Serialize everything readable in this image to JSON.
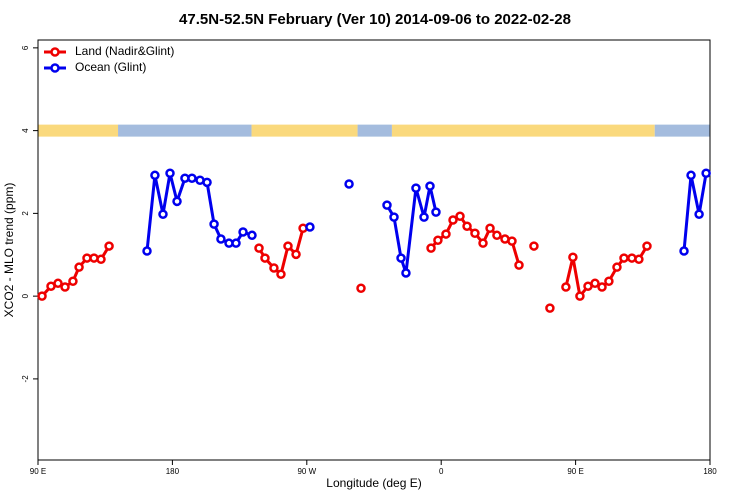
{
  "chart_data": {
    "type": "line",
    "title": "47.5N-52.5N February (Ver 10)   2014-09-06 to 2022-02-28",
    "x_label": "Longitude (deg E)",
    "y_label": "XCO2 - MLO trend (ppm)",
    "xlim": [
      90,
      540
    ],
    "xticks": [
      {
        "value": 90,
        "label": "90 E"
      },
      {
        "value": 180,
        "label": "180"
      },
      {
        "value": 270,
        "label": "90 W"
      },
      {
        "value": 360,
        "label": "0"
      },
      {
        "value": 450,
        "label": "90 E"
      },
      {
        "value": 540,
        "label": "180"
      }
    ],
    "ylim": [
      -3.96,
      6.19
    ],
    "yticks": [
      -2,
      0,
      2,
      4,
      6
    ],
    "legend": "top-left",
    "band": {
      "y": 4,
      "segments": [
        {
          "start": 90,
          "end": 143.6,
          "color": "#fad97d"
        },
        {
          "start": 143.6,
          "end": 233,
          "color": "#a4bcde"
        },
        {
          "start": 233,
          "end": 304,
          "color": "#fad97d"
        },
        {
          "start": 304,
          "end": 327,
          "color": "#a4bcde"
        },
        {
          "start": 327,
          "end": 503,
          "color": "#fad97d"
        },
        {
          "start": 503,
          "end": 540,
          "color": "#a4bcde"
        }
      ]
    },
    "series": [
      {
        "name": "Land (Nadir&Glint)",
        "color": "#ee0000",
        "x": [
          92.7,
          98.7,
          103.4,
          108.1,
          113.4,
          117.5,
          122.8,
          127.5,
          132.2,
          137.6,
          null,
          238.0,
          242.0,
          248.0,
          252.7,
          257.4,
          262.8,
          267.5,
          null,
          306.3,
          null,
          353.2,
          357.8,
          363.2,
          367.9,
          372.6,
          377.3,
          382.6,
          388.0,
          392.7,
          397.3,
          402.7,
          407.4,
          412.1,
          null,
          422.1,
          null,
          432.8,
          null,
          443.5,
          448.2,
          452.9,
          458.3,
          463.0,
          467.7,
          472.3,
          477.7,
          482.4,
          487.7,
          492.4,
          497.8
        ],
        "values": [
          0,
          0.24,
          0.31,
          0.22,
          0.36,
          0.7,
          0.92,
          0.92,
          0.89,
          1.21,
          null,
          1.16,
          0.92,
          0.68,
          0.53,
          1.21,
          1.01,
          1.64,
          null,
          0.19,
          null,
          1.16,
          1.35,
          1.5,
          1.84,
          1.93,
          1.69,
          1.52,
          1.28,
          1.64,
          1.47,
          1.38,
          1.33,
          0.75,
          null,
          1.21,
          null,
          -0.29,
          null,
          0.22,
          0.94,
          0,
          0.24,
          0.31,
          0.22,
          0.36,
          0.7,
          0.92,
          0.92,
          0.89,
          1.21
        ]
      },
      {
        "name": "Ocean (Glint)",
        "color": "#0000ee",
        "x": [
          163.0,
          168.3,
          173.7,
          178.4,
          183.1,
          188.4,
          193.1,
          198.5,
          203.2,
          207.9,
          212.5,
          217.9,
          222.6,
          227.3,
          233.3,
          null,
          272.1,
          null,
          298.3,
          null,
          323.7,
          328.4,
          333.1,
          336.4,
          343.1,
          348.5,
          352.5,
          356.5,
          null,
          522.6,
          527.3,
          532.7,
          537.4
        ],
        "values": [
          1.09,
          2.92,
          1.98,
          2.97,
          2.29,
          2.85,
          2.85,
          2.8,
          2.75,
          1.74,
          1.38,
          1.28,
          1.28,
          1.55,
          1.47,
          null,
          1.67,
          null,
          2.71,
          null,
          2.2,
          1.91,
          0.92,
          0.56,
          2.61,
          1.91,
          2.66,
          2.03,
          null,
          1.09,
          2.92,
          1.98,
          2.97
        ]
      }
    ]
  }
}
